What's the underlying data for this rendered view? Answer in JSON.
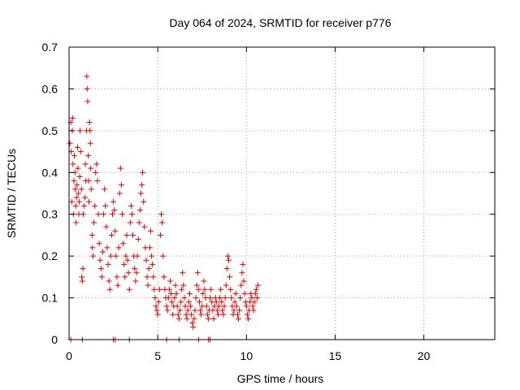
{
  "chart_data": {
    "type": "scatter",
    "title": "Day 064 of 2024, SRMTID for receiver p776",
    "xlabel": "GPS time / hours",
    "ylabel": "SRMTID / TECUs",
    "xlim": [
      0,
      24
    ],
    "ylim": [
      0,
      0.7
    ],
    "x_ticks": [
      "0",
      "5",
      "10",
      "15",
      "20"
    ],
    "x_tick_values": [
      0,
      5,
      10,
      15,
      20
    ],
    "y_ticks": [
      "0",
      "0.1",
      "0.2",
      "0.3",
      "0.4",
      "0.5",
      "0.6",
      "0.7"
    ],
    "y_tick_values": [
      0,
      0.1,
      0.2,
      0.3,
      0.4,
      0.5,
      0.6,
      0.7
    ],
    "grid": true,
    "marker": "+",
    "series": [
      {
        "name": "SRMTID",
        "color": "#dd0000",
        "points": [
          [
            0.05,
            0.47
          ],
          [
            0.1,
            0.52
          ],
          [
            0.12,
            0.45
          ],
          [
            0.15,
            0.33
          ],
          [
            0.18,
            0.5
          ],
          [
            0.2,
            0.53
          ],
          [
            0.22,
            0.42
          ],
          [
            0.25,
            0.3
          ],
          [
            0.28,
            0.38
          ],
          [
            0.3,
            0.44
          ],
          [
            0.33,
            0.4
          ],
          [
            0.35,
            0.36
          ],
          [
            0.38,
            0.32
          ],
          [
            0.4,
            0.28
          ],
          [
            0.42,
            0.34
          ],
          [
            0.45,
            0.37
          ],
          [
            0.48,
            0.46
          ],
          [
            0.5,
            0.41
          ],
          [
            0.52,
            0.35
          ],
          [
            0.55,
            0.3
          ],
          [
            0.58,
            0.33
          ],
          [
            0.6,
            0.39
          ],
          [
            0.62,
            0.5
          ],
          [
            0.65,
            0.45
          ],
          [
            0.7,
            0.36
          ],
          [
            0.72,
            0.15
          ],
          [
            0.75,
            0.14
          ],
          [
            0.78,
            0.17
          ],
          [
            0.8,
            0.3
          ],
          [
            0.85,
            0.32
          ],
          [
            0.9,
            0.34
          ],
          [
            0.92,
            0.42
          ],
          [
            0.95,
            0.38
          ],
          [
            0.98,
            0.5
          ],
          [
            1.0,
            0.63
          ],
          [
            1.02,
            0.6
          ],
          [
            1.05,
            0.57
          ],
          [
            1.08,
            0.44
          ],
          [
            1.1,
            0.38
          ],
          [
            1.12,
            0.33
          ],
          [
            1.15,
            0.52
          ],
          [
            1.18,
            0.5
          ],
          [
            1.2,
            0.47
          ],
          [
            1.22,
            0.41
          ],
          [
            1.25,
            0.36
          ],
          [
            1.3,
            0.25
          ],
          [
            1.32,
            0.22
          ],
          [
            1.35,
            0.2
          ],
          [
            1.4,
            0.28
          ],
          [
            1.45,
            0.32
          ],
          [
            1.5,
            0.4
          ],
          [
            1.55,
            0.42
          ],
          [
            1.6,
            0.38
          ],
          [
            1.65,
            0.3
          ],
          [
            1.7,
            0.23
          ],
          [
            1.75,
            0.19
          ],
          [
            1.8,
            0.17
          ],
          [
            1.85,
            0.15
          ],
          [
            1.9,
            0.21
          ],
          [
            1.95,
            0.3
          ],
          [
            2.0,
            0.36
          ],
          [
            2.05,
            0.32
          ],
          [
            2.1,
            0.27
          ],
          [
            2.15,
            0.22
          ],
          [
            2.2,
            0.18
          ],
          [
            2.25,
            0.14
          ],
          [
            2.3,
            0.12
          ],
          [
            2.35,
            0.2
          ],
          [
            2.4,
            0.25
          ],
          [
            2.45,
            0.3
          ],
          [
            2.5,
            0.33
          ],
          [
            2.55,
            0.31
          ],
          [
            2.6,
            0.26
          ],
          [
            2.65,
            0.2
          ],
          [
            2.7,
            0.15
          ],
          [
            2.75,
            0.13
          ],
          [
            2.8,
            0.22
          ],
          [
            2.85,
            0.35
          ],
          [
            2.9,
            0.41
          ],
          [
            2.95,
            0.37
          ],
          [
            3.0,
            0.3
          ],
          [
            3.05,
            0.23
          ],
          [
            3.1,
            0.18
          ],
          [
            3.15,
            0.15
          ],
          [
            3.2,
            0.2
          ],
          [
            3.25,
            0.25
          ],
          [
            3.3,
            0.19
          ],
          [
            3.35,
            0.16
          ],
          [
            3.4,
            0.12
          ],
          [
            3.45,
            0.28
          ],
          [
            3.5,
            0.32
          ],
          [
            3.55,
            0.3
          ],
          [
            3.6,
            0.25
          ],
          [
            3.65,
            0.2
          ],
          [
            3.7,
            0.17
          ],
          [
            3.75,
            0.14
          ],
          [
            3.8,
            0.16
          ],
          [
            3.85,
            0.2
          ],
          [
            3.9,
            0.24
          ],
          [
            3.95,
            0.28
          ],
          [
            4.0,
            0.31
          ],
          [
            4.05,
            0.35
          ],
          [
            4.1,
            0.37
          ],
          [
            4.15,
            0.4
          ],
          [
            4.2,
            0.33
          ],
          [
            4.25,
            0.27
          ],
          [
            4.3,
            0.22
          ],
          [
            4.35,
            0.19
          ],
          [
            4.4,
            0.15
          ],
          [
            4.45,
            0.13
          ],
          [
            4.5,
            0.17
          ],
          [
            4.55,
            0.22
          ],
          [
            4.6,
            0.26
          ],
          [
            4.65,
            0.2
          ],
          [
            4.7,
            0.18
          ],
          [
            4.75,
            0.15
          ],
          [
            4.8,
            0.12
          ],
          [
            4.85,
            0.1
          ],
          [
            4.9,
            0.08
          ],
          [
            4.95,
            0.07
          ],
          [
            5.0,
            0.06
          ],
          [
            5.05,
            0.09
          ],
          [
            5.1,
            0.12
          ],
          [
            5.15,
            0.25
          ],
          [
            5.2,
            0.3
          ],
          [
            5.25,
            0.28
          ],
          [
            5.3,
            0.2
          ],
          [
            5.35,
            0.15
          ],
          [
            5.4,
            0.12
          ],
          [
            5.45,
            0.1
          ],
          [
            5.5,
            0.08
          ],
          [
            5.55,
            0.07
          ],
          [
            5.6,
            0.1
          ],
          [
            5.65,
            0.12
          ],
          [
            5.7,
            0.14
          ],
          [
            5.75,
            0.11
          ],
          [
            5.8,
            0.09
          ],
          [
            5.85,
            0.06
          ],
          [
            5.9,
            0.08
          ],
          [
            5.95,
            0.1
          ],
          [
            6.0,
            0.13
          ],
          [
            6.05,
            0.11
          ],
          [
            6.1,
            0.08
          ],
          [
            6.15,
            0.06
          ],
          [
            6.2,
            0.05
          ],
          [
            6.25,
            0.07
          ],
          [
            6.3,
            0.09
          ],
          [
            6.35,
            0.12
          ],
          [
            6.4,
            0.16
          ],
          [
            6.45,
            0.13
          ],
          [
            6.5,
            0.1
          ],
          [
            6.55,
            0.08
          ],
          [
            6.6,
            0.06
          ],
          [
            6.65,
            0.05
          ],
          [
            6.7,
            0.07
          ],
          [
            6.75,
            0.09
          ],
          [
            6.8,
            0.11
          ],
          [
            6.85,
            0.08
          ],
          [
            6.9,
            0.06
          ],
          [
            6.95,
            0.04
          ],
          [
            7.0,
            0.03
          ],
          [
            7.05,
            0.05
          ],
          [
            7.1,
            0.07
          ],
          [
            7.15,
            0.1
          ],
          [
            7.2,
            0.13
          ],
          [
            7.25,
            0.16
          ],
          [
            7.3,
            0.12
          ],
          [
            7.35,
            0.09
          ],
          [
            7.4,
            0.07
          ],
          [
            7.45,
            0.06
          ],
          [
            7.5,
            0.08
          ],
          [
            7.55,
            0.11
          ],
          [
            7.6,
            0.14
          ],
          [
            7.65,
            0.12
          ],
          [
            7.7,
            0.1
          ],
          [
            7.75,
            0.08
          ],
          [
            7.8,
            0.06
          ],
          [
            7.85,
            0.05
          ],
          [
            7.9,
            0.07
          ],
          [
            7.95,
            0.1
          ],
          [
            8.0,
            0.12
          ],
          [
            8.05,
            0.09
          ],
          [
            8.1,
            0.07
          ],
          [
            8.15,
            0.05
          ],
          [
            8.2,
            0.08
          ],
          [
            8.25,
            0.1
          ],
          [
            8.3,
            0.09
          ],
          [
            8.35,
            0.07
          ],
          [
            8.4,
            0.06
          ],
          [
            8.45,
            0.08
          ],
          [
            8.5,
            0.1
          ],
          [
            8.55,
            0.12
          ],
          [
            8.6,
            0.09
          ],
          [
            8.65,
            0.07
          ],
          [
            8.7,
            0.06
          ],
          [
            8.75,
            0.08
          ],
          [
            8.8,
            0.1
          ],
          [
            8.85,
            0.13
          ],
          [
            8.9,
            0.17
          ],
          [
            8.95,
            0.2
          ],
          [
            9.0,
            0.19
          ],
          [
            9.05,
            0.15
          ],
          [
            9.1,
            0.12
          ],
          [
            9.15,
            0.1
          ],
          [
            9.2,
            0.08
          ],
          [
            9.25,
            0.06
          ],
          [
            9.3,
            0.07
          ],
          [
            9.35,
            0.09
          ],
          [
            9.4,
            0.11
          ],
          [
            9.45,
            0.08
          ],
          [
            9.5,
            0.06
          ],
          [
            9.55,
            0.05
          ],
          [
            9.6,
            0.07
          ],
          [
            9.65,
            0.1
          ],
          [
            9.7,
            0.13
          ],
          [
            9.75,
            0.16
          ],
          [
            9.8,
            0.18
          ],
          [
            9.85,
            0.14
          ],
          [
            9.9,
            0.11
          ],
          [
            9.95,
            0.09
          ],
          [
            10.0,
            0.08
          ],
          [
            10.05,
            0.06
          ],
          [
            10.1,
            0.05
          ],
          [
            10.15,
            0.07
          ],
          [
            10.2,
            0.09
          ],
          [
            10.25,
            0.11
          ],
          [
            10.3,
            0.1
          ],
          [
            10.35,
            0.08
          ],
          [
            10.4,
            0.07
          ],
          [
            10.45,
            0.09
          ],
          [
            10.5,
            0.11
          ],
          [
            10.55,
            0.12
          ],
          [
            10.6,
            0.1
          ],
          [
            10.65,
            0.13
          ]
        ]
      }
    ],
    "zero_points_x": [
      0.1,
      0.75,
      2.5,
      2.6,
      3.4,
      5.5,
      6.2,
      7.3,
      7.85,
      7.95
    ]
  }
}
